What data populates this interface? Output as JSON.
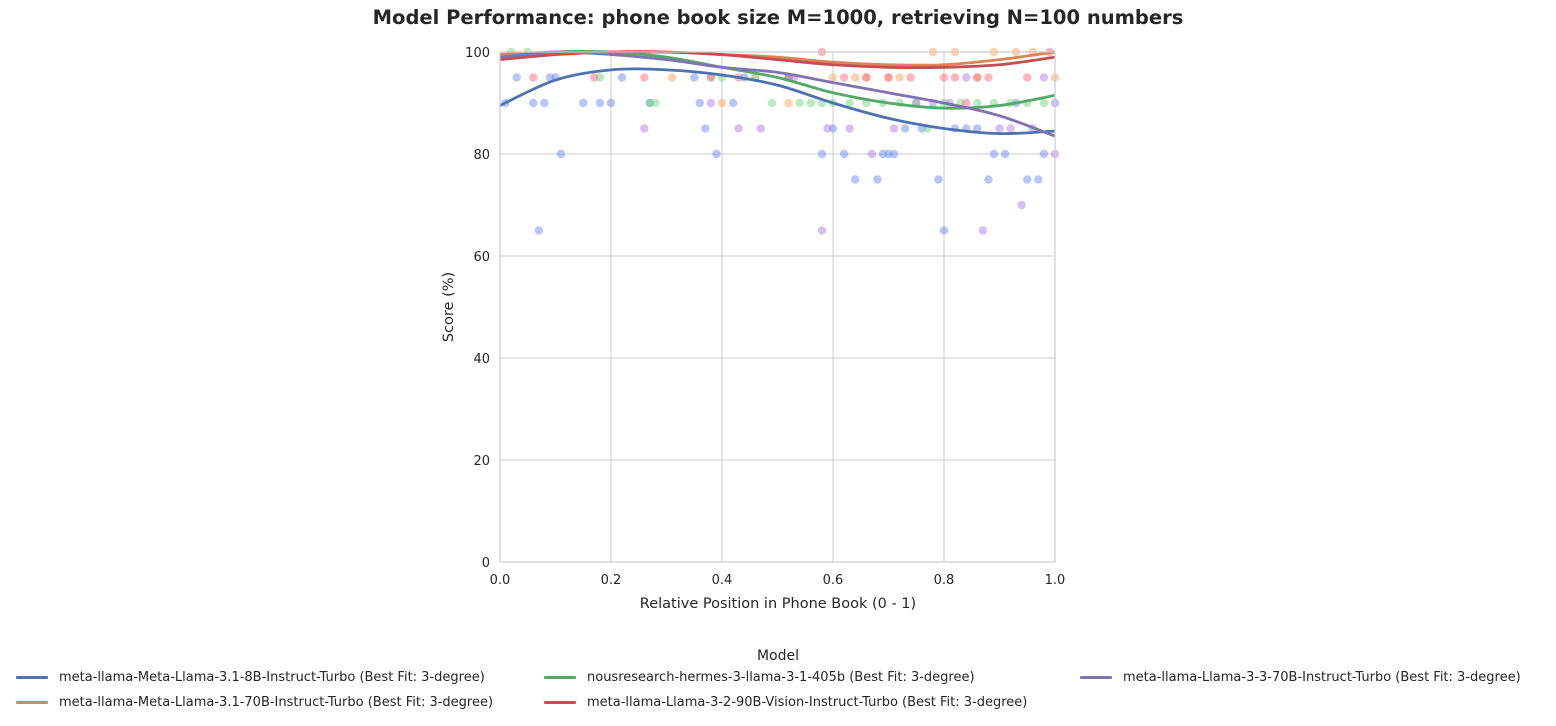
{
  "chart_data": {
    "type": "scatter",
    "title": "Model Performance: phone book size M=1000, retrieving N=100 numbers",
    "xlabel": "Relative Position in Phone Book (0 - 1)",
    "ylabel": "Score (%)",
    "xlim": [
      0,
      1
    ],
    "ylim": [
      0,
      100
    ],
    "xticks": [
      "0.0",
      "0.2",
      "0.4",
      "0.6",
      "0.8",
      "1.0"
    ],
    "yticks": [
      "0",
      "20",
      "40",
      "60",
      "80",
      "100"
    ],
    "grid": true,
    "legend_title": "Model",
    "legend_position": "bottom-center",
    "series": [
      {
        "name": "meta-llama-Meta-Llama-3.1-8B-Instruct-Turbo (Best Fit: 3-degree)",
        "line_color": "#4c72b0",
        "point_color": "#6b8df0",
        "fit": [
          [
            0,
            89.5
          ],
          [
            0.1,
            94.5
          ],
          [
            0.2,
            96.5
          ],
          [
            0.3,
            96.5
          ],
          [
            0.4,
            95.5
          ],
          [
            0.5,
            93.5
          ],
          [
            0.6,
            90
          ],
          [
            0.7,
            87
          ],
          [
            0.8,
            85
          ],
          [
            0.9,
            84
          ],
          [
            1.0,
            84.5
          ]
        ],
        "points": [
          [
            0.01,
            90
          ],
          [
            0.03,
            95
          ],
          [
            0.06,
            90
          ],
          [
            0.07,
            65
          ],
          [
            0.08,
            90
          ],
          [
            0.09,
            95
          ],
          [
            0.1,
            95
          ],
          [
            0.11,
            80
          ],
          [
            0.15,
            90
          ],
          [
            0.18,
            90
          ],
          [
            0.2,
            90
          ],
          [
            0.22,
            95
          ],
          [
            0.27,
            90
          ],
          [
            0.35,
            95
          ],
          [
            0.36,
            90
          ],
          [
            0.37,
            85
          ],
          [
            0.39,
            80
          ],
          [
            0.42,
            90
          ],
          [
            0.44,
            95
          ],
          [
            0.52,
            95
          ],
          [
            0.58,
            80
          ],
          [
            0.6,
            85
          ],
          [
            0.62,
            80
          ],
          [
            0.64,
            75
          ],
          [
            0.68,
            75
          ],
          [
            0.69,
            80
          ],
          [
            0.7,
            80
          ],
          [
            0.71,
            80
          ],
          [
            0.73,
            85
          ],
          [
            0.76,
            85
          ],
          [
            0.79,
            75
          ],
          [
            0.8,
            65
          ],
          [
            0.82,
            85
          ],
          [
            0.84,
            85
          ],
          [
            0.86,
            85
          ],
          [
            0.88,
            75
          ],
          [
            0.89,
            80
          ],
          [
            0.91,
            80
          ],
          [
            0.93,
            90
          ],
          [
            0.95,
            75
          ],
          [
            0.97,
            75
          ],
          [
            0.98,
            80
          ],
          [
            1.0,
            90
          ]
        ]
      },
      {
        "name": "meta-llama-Meta-Llama-3.1-70B-Instruct-Turbo (Best Fit: 3-degree)",
        "line_color": "#dd8452",
        "point_color": "#ffa35c",
        "fit": [
          [
            0,
            99.5
          ],
          [
            0.1,
            100
          ],
          [
            0.2,
            100
          ],
          [
            0.3,
            100
          ],
          [
            0.4,
            99.5
          ],
          [
            0.5,
            99
          ],
          [
            0.6,
            98
          ],
          [
            0.7,
            97.5
          ],
          [
            0.8,
            97.5
          ],
          [
            0.9,
            98.5
          ],
          [
            1.0,
            100
          ]
        ],
        "points": [
          [
            0.31,
            95
          ],
          [
            0.4,
            90
          ],
          [
            0.46,
            95
          ],
          [
            0.52,
            90
          ],
          [
            0.6,
            95
          ],
          [
            0.64,
            95
          ],
          [
            0.66,
            95
          ],
          [
            0.7,
            95
          ],
          [
            0.72,
            95
          ],
          [
            0.78,
            100
          ],
          [
            0.82,
            100
          ],
          [
            0.86,
            95
          ],
          [
            0.89,
            100
          ],
          [
            0.93,
            100
          ],
          [
            0.96,
            100
          ],
          [
            1.0,
            95
          ]
        ]
      },
      {
        "name": "nousresearch-hermes-3-llama-3-1-405b (Best Fit: 3-degree)",
        "line_color": "#55a868",
        "point_color": "#73d885",
        "fit": [
          [
            0,
            99
          ],
          [
            0.1,
            100
          ],
          [
            0.2,
            100
          ],
          [
            0.3,
            99
          ],
          [
            0.4,
            97
          ],
          [
            0.5,
            95
          ],
          [
            0.6,
            92
          ],
          [
            0.7,
            90
          ],
          [
            0.8,
            89
          ],
          [
            0.9,
            89.5
          ],
          [
            1.0,
            91.5
          ]
        ],
        "points": [
          [
            0.02,
            100
          ],
          [
            0.05,
            100
          ],
          [
            0.18,
            95
          ],
          [
            0.27,
            90
          ],
          [
            0.28,
            90
          ],
          [
            0.38,
            95
          ],
          [
            0.4,
            95
          ],
          [
            0.46,
            95
          ],
          [
            0.49,
            90
          ],
          [
            0.52,
            95
          ],
          [
            0.54,
            90
          ],
          [
            0.56,
            90
          ],
          [
            0.58,
            90
          ],
          [
            0.6,
            90
          ],
          [
            0.63,
            90
          ],
          [
            0.66,
            90
          ],
          [
            0.69,
            90
          ],
          [
            0.72,
            90
          ],
          [
            0.75,
            90
          ],
          [
            0.77,
            85
          ],
          [
            0.8,
            90
          ],
          [
            0.83,
            90
          ],
          [
            0.86,
            90
          ],
          [
            0.89,
            90
          ],
          [
            0.92,
            90
          ],
          [
            0.95,
            90
          ],
          [
            0.98,
            90
          ]
        ]
      },
      {
        "name": "meta-llama-Llama-3-2-90B-Vision-Instruct-Turbo (Best Fit: 3-degree)",
        "line_color": "#c44e52",
        "point_color": "#ff6b7a",
        "fit": [
          [
            0,
            98.5
          ],
          [
            0.1,
            99.5
          ],
          [
            0.2,
            100
          ],
          [
            0.3,
            100
          ],
          [
            0.4,
            99.5
          ],
          [
            0.5,
            98.5
          ],
          [
            0.6,
            97.5
          ],
          [
            0.7,
            97
          ],
          [
            0.8,
            97
          ],
          [
            0.9,
            97.5
          ],
          [
            1.0,
            99
          ]
        ],
        "points": [
          [
            0.06,
            95
          ],
          [
            0.17,
            95
          ],
          [
            0.26,
            95
          ],
          [
            0.38,
            95
          ],
          [
            0.43,
            95
          ],
          [
            0.52,
            95
          ],
          [
            0.58,
            100
          ],
          [
            0.62,
            95
          ],
          [
            0.66,
            95
          ],
          [
            0.7,
            95
          ],
          [
            0.74,
            95
          ],
          [
            0.8,
            95
          ],
          [
            0.82,
            95
          ],
          [
            0.84,
            90
          ],
          [
            0.86,
            95
          ],
          [
            0.88,
            95
          ],
          [
            0.95,
            95
          ],
          [
            0.99,
            100
          ]
        ]
      },
      {
        "name": "meta-llama-Llama-3-3-70B-Instruct-Turbo (Best Fit: 3-degree)",
        "line_color": "#8172b3",
        "point_color": "#b57ee8",
        "fit": [
          [
            0,
            99
          ],
          [
            0.1,
            100
          ],
          [
            0.2,
            99.5
          ],
          [
            0.3,
            98.5
          ],
          [
            0.4,
            97
          ],
          [
            0.5,
            96
          ],
          [
            0.6,
            94
          ],
          [
            0.7,
            92
          ],
          [
            0.8,
            90
          ],
          [
            0.9,
            87.5
          ],
          [
            1.0,
            83.5
          ]
        ],
        "points": [
          [
            0.26,
            85
          ],
          [
            0.38,
            90
          ],
          [
            0.43,
            85
          ],
          [
            0.47,
            85
          ],
          [
            0.53,
            95
          ],
          [
            0.58,
            65
          ],
          [
            0.59,
            85
          ],
          [
            0.63,
            85
          ],
          [
            0.67,
            80
          ],
          [
            0.71,
            85
          ],
          [
            0.75,
            90
          ],
          [
            0.78,
            90
          ],
          [
            0.81,
            90
          ],
          [
            0.84,
            95
          ],
          [
            0.87,
            65
          ],
          [
            0.9,
            85
          ],
          [
            0.92,
            85
          ],
          [
            0.94,
            70
          ],
          [
            0.96,
            85
          ],
          [
            0.98,
            95
          ],
          [
            1.0,
            80
          ]
        ]
      }
    ]
  }
}
